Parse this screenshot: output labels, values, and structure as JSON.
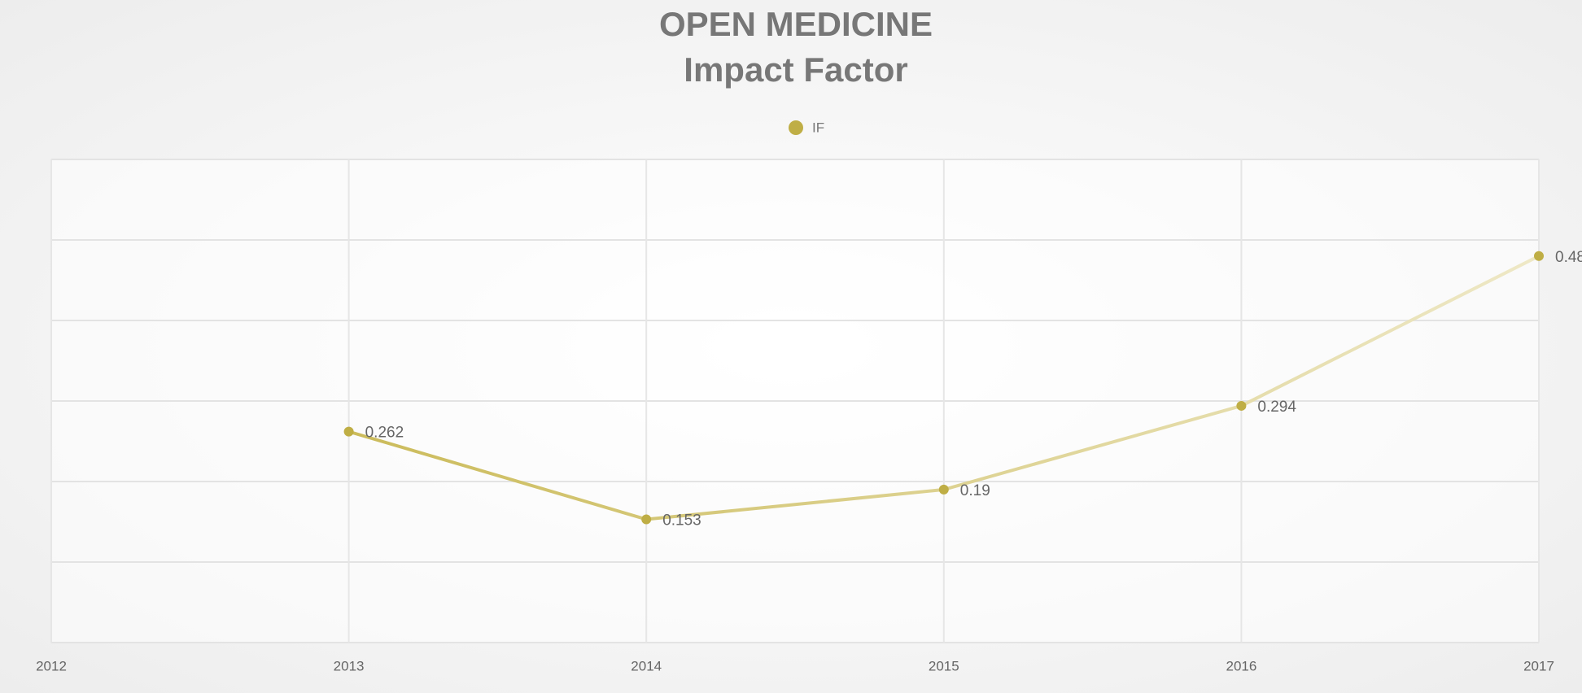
{
  "chart_data": {
    "type": "line",
    "title": "OPEN MEDICINE",
    "subtitle": "Impact Factor",
    "x": [
      2013,
      2014,
      2015,
      2016,
      2017
    ],
    "series": [
      {
        "name": "IF",
        "color": "#bfae45",
        "values": [
          0.262,
          0.153,
          0.19,
          0.294,
          0.48
        ]
      }
    ],
    "xlim": [
      2012,
      2017
    ],
    "xticks": [
      2012,
      2013,
      2014,
      2015,
      2016,
      2017
    ],
    "ylim": [
      0,
      0.6
    ],
    "yticks": [
      0,
      0.1,
      0.2,
      0.3,
      0.4,
      0.5,
      0.6
    ],
    "grid": true,
    "legend": "top"
  }
}
